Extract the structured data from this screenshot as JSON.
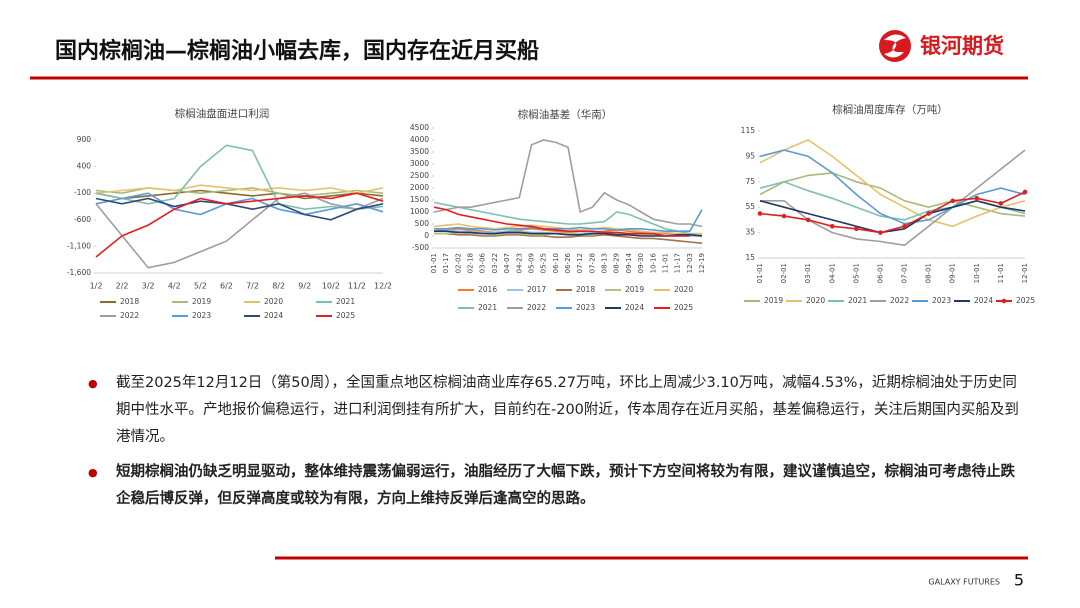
{
  "header": {
    "title": "国内棕榈油—棕榈油小幅去库，国内存在近月买船",
    "logo_text": "银河期货"
  },
  "chart_data": [
    {
      "type": "line",
      "title": "棕榈油盘面进口利润",
      "categories": [
        "1/2",
        "2/2",
        "3/2",
        "4/2",
        "5/2",
        "6/2",
        "7/2",
        "8/2",
        "9/2",
        "10/2",
        "11/2",
        "12/2"
      ],
      "ylim": [
        -1600,
        900
      ],
      "yticks": [
        900,
        400,
        -100,
        -600,
        {
          "value": -1100,
          "label": "-1,100"
        },
        {
          "value": -1600,
          "label": "-1,600"
        }
      ],
      "grid": false,
      "series": [
        {
          "name": "2018",
          "color": "#8b6b2e",
          "values": [
            -100,
            -200,
            -150,
            -100,
            -50,
            -100,
            -150,
            -100,
            -200,
            -150,
            -100,
            -150
          ]
        },
        {
          "name": "2019",
          "color": "#a9b97a",
          "values": [
            -50,
            -100,
            0,
            -50,
            -100,
            -50,
            0,
            -100,
            -150,
            -100,
            -50,
            -100
          ]
        },
        {
          "name": "2020",
          "color": "#e8c06b",
          "values": [
            -100,
            -50,
            0,
            -50,
            50,
            0,
            -50,
            0,
            -50,
            0,
            -100,
            0
          ]
        },
        {
          "name": "2021",
          "color": "#7fbfb0",
          "values": [
            -100,
            -200,
            -300,
            -200,
            400,
            800,
            700,
            -300,
            -400,
            -350,
            -400,
            -350
          ]
        },
        {
          "name": "2022",
          "color": "#9e9e9e",
          "values": [
            -300,
            -900,
            -1500,
            -1400,
            -1200,
            -1000,
            -600,
            -200,
            -100,
            -300,
            -400,
            -200
          ]
        },
        {
          "name": "2023",
          "color": "#5b9bd5",
          "values": [
            -300,
            -200,
            -100,
            -400,
            -500,
            -300,
            -200,
            -400,
            -500,
            -400,
            -300,
            -450
          ]
        },
        {
          "name": "2024",
          "color": "#2e4a7a",
          "values": [
            -200,
            -300,
            -200,
            -350,
            -250,
            -300,
            -400,
            -300,
            -500,
            -600,
            -400,
            -300
          ]
        },
        {
          "name": "2025",
          "color": "#e02020",
          "values": [
            -1300,
            -900,
            -700,
            -400,
            -200,
            -300,
            -250,
            -200,
            -150,
            -200,
            -100,
            -250
          ]
        }
      ]
    },
    {
      "type": "line",
      "title": "棕榈油基差（华南）",
      "categories": [
        "01-01",
        "01-17",
        "02-02",
        "02-18",
        "03-06",
        "03-22",
        "04-07",
        "04-23",
        "05-09",
        "05-25",
        "06-10",
        "06-26",
        "07-12",
        "07-28",
        "08-13",
        "08-29",
        "09-14",
        "09-30",
        "10-16",
        "11-01",
        "11-17",
        "12-03",
        "12-19"
      ],
      "ylim": [
        -500,
        4500
      ],
      "yticks": [
        -500,
        0,
        500,
        1000,
        1500,
        2000,
        2500,
        3000,
        3500,
        4000,
        4500
      ],
      "grid": false,
      "series": [
        {
          "name": "2016",
          "color": "#ed7d31",
          "values": [
            200,
            250,
            300,
            250,
            200,
            150,
            200,
            250,
            300,
            250,
            200,
            150,
            100,
            150,
            200,
            250,
            200,
            150,
            100,
            100,
            50,
            50,
            0
          ]
        },
        {
          "name": "2017",
          "color": "#9dc3e6",
          "values": [
            300,
            250,
            200,
            200,
            150,
            150,
            200,
            200,
            150,
            150,
            100,
            100,
            100,
            150,
            150,
            100,
            100,
            100,
            50,
            50,
            50,
            0,
            0
          ]
        },
        {
          "name": "2018",
          "color": "#a5704a",
          "values": [
            100,
            100,
            50,
            50,
            0,
            0,
            50,
            50,
            0,
            0,
            -50,
            -50,
            0,
            0,
            50,
            0,
            -50,
            -100,
            -100,
            -150,
            -200,
            -250,
            -300
          ]
        },
        {
          "name": "2019",
          "color": "#b4c17f",
          "values": [
            100,
            100,
            150,
            100,
            100,
            50,
            100,
            100,
            50,
            50,
            100,
            100,
            50,
            50,
            100,
            100,
            50,
            50,
            50,
            0,
            0,
            50,
            50
          ]
        },
        {
          "name": "2020",
          "color": "#e8c06b",
          "values": [
            400,
            450,
            500,
            400,
            350,
            300,
            350,
            400,
            450,
            400,
            350,
            300,
            250,
            300,
            350,
            300,
            250,
            200,
            150,
            150,
            100,
            100,
            100
          ]
        },
        {
          "name": "2021",
          "color": "#7fbfb0",
          "values": [
            1400,
            1300,
            1200,
            1100,
            1000,
            900,
            800,
            700,
            650,
            600,
            550,
            500,
            500,
            550,
            600,
            1000,
            900,
            700,
            500,
            300,
            200,
            100,
            0
          ]
        },
        {
          "name": "2022",
          "color": "#9e9e9e",
          "values": [
            1000,
            1100,
            1200,
            1200,
            1300,
            1400,
            1500,
            1600,
            3800,
            4000,
            3900,
            3700,
            1000,
            1200,
            1800,
            1500,
            1300,
            1000,
            700,
            600,
            500,
            500,
            400
          ]
        },
        {
          "name": "2023",
          "color": "#5b9bd5",
          "values": [
            300,
            300,
            350,
            300,
            300,
            250,
            300,
            300,
            350,
            300,
            300,
            300,
            350,
            300,
            300,
            250,
            300,
            300,
            250,
            200,
            200,
            200,
            1100
          ]
        },
        {
          "name": "2024",
          "color": "#203864",
          "values": [
            200,
            200,
            150,
            150,
            100,
            100,
            150,
            150,
            100,
            100,
            100,
            50,
            50,
            100,
            100,
            50,
            50,
            0,
            0,
            0,
            50,
            50,
            0
          ]
        },
        {
          "name": "2025",
          "color": "#e02020",
          "values": [
            1200,
            1100,
            900,
            800,
            700,
            600,
            500,
            450,
            400,
            300,
            250,
            200,
            200,
            200,
            150,
            150,
            100,
            100,
            100,
            0,
            0,
            0,
            null
          ]
        }
      ]
    },
    {
      "type": "line",
      "title": "棕榈油周度库存（万吨）",
      "categories": [
        "01-01",
        "02-01",
        "03-01",
        "04-01",
        "05-01",
        "06-01",
        "07-01",
        "08-01",
        "09-01",
        "10-01",
        "11-01",
        "12-01"
      ],
      "ylim": [
        15,
        115
      ],
      "yticks": [
        15,
        35,
        55,
        75,
        95,
        115
      ],
      "grid": false,
      "series": [
        {
          "name": "2019",
          "color": "#a9b97a",
          "values": [
            65,
            75,
            80,
            82,
            75,
            70,
            60,
            55,
            60,
            55,
            50,
            48
          ]
        },
        {
          "name": "2020",
          "color": "#e8c06b",
          "values": [
            90,
            100,
            108,
            95,
            80,
            65,
            55,
            45,
            40,
            48,
            55,
            60
          ]
        },
        {
          "name": "2021",
          "color": "#7fbfb0",
          "values": [
            70,
            75,
            68,
            62,
            55,
            48,
            45,
            52,
            55,
            60,
            55,
            50
          ]
        },
        {
          "name": "2022",
          "color": "#9e9e9e",
          "values": [
            60,
            60,
            45,
            35,
            30,
            28,
            25,
            40,
            55,
            70,
            85,
            100
          ]
        },
        {
          "name": "2023",
          "color": "#5b9bd5",
          "values": [
            95,
            100,
            95,
            82,
            65,
            50,
            42,
            45,
            55,
            65,
            70,
            65
          ]
        },
        {
          "name": "2024",
          "color": "#203864",
          "values": [
            60,
            55,
            50,
            45,
            40,
            35,
            38,
            50,
            55,
            60,
            55,
            52
          ]
        },
        {
          "name": "2025",
          "color": "#e02020",
          "markers": true,
          "values": [
            50,
            48,
            45,
            40,
            38,
            35,
            40,
            50,
            60,
            62,
            58,
            67
          ]
        }
      ]
    }
  ],
  "bullets": [
    "截至2025年12月12日（第50周），全国重点地区棕榈油商业库存65.27万吨，环比上周减少3.10万吨，减幅4.53%，近期棕榈油处于历史同期中性水平。产地报价偏稳运行，进口利润倒挂有所扩大，目前约在-200附近，传本周存在近月买船，基差偏稳运行，关注后期国内买船及到港情况。",
    "短期棕榈油仍缺乏明显驱动，整体维持震荡偏弱运行，油脂经历了大幅下跌，预计下方空间将较为有限，建议谨慎追空，棕榈油可考虑待止跌企稳后博反弹，但反弹高度或较为有限，方向上维持反弹后逢高空的思路。"
  ],
  "footer": {
    "brand": "GALAXY FUTURES",
    "page": 5
  }
}
